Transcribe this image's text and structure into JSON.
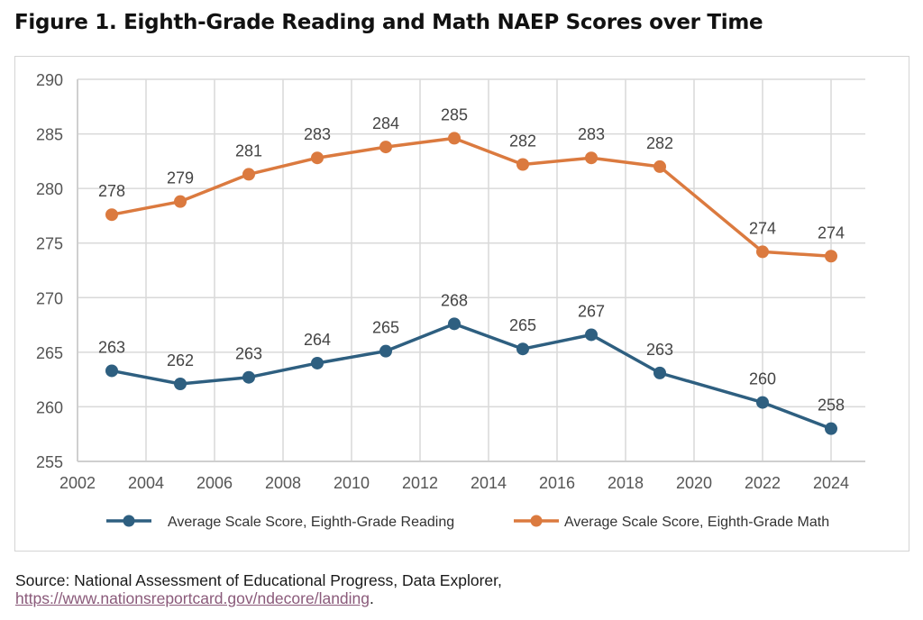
{
  "figure_title": "Figure 1. Eighth-Grade Reading and Math NAEP Scores over Time",
  "source": {
    "prefix": "Source: National Assessment of Educational Progress, Data Explorer,",
    "link_text": "https://www.nationsreportcard.gov/ndecore/landing",
    "suffix": "."
  },
  "chart_data": {
    "type": "line",
    "title": "Figure 1. Eighth-Grade Reading and Math NAEP Scores over Time",
    "xlabel": "",
    "ylabel": "",
    "xlim": [
      2002,
      2025
    ],
    "ylim": [
      255,
      290
    ],
    "xticks": [
      2002,
      2004,
      2006,
      2008,
      2010,
      2012,
      2014,
      2016,
      2018,
      2020,
      2022,
      2024
    ],
    "yticks": [
      255,
      260,
      265,
      270,
      275,
      280,
      285,
      290
    ],
    "grid": true,
    "legend_position": "bottom",
    "x": [
      2003,
      2005,
      2007,
      2009,
      2011,
      2013,
      2015,
      2017,
      2019,
      2022,
      2024
    ],
    "series": [
      {
        "name": "Average Scale Score, Eighth-Grade Reading",
        "color": "#2e5f80",
        "values": [
          263.3,
          262.1,
          262.7,
          264.0,
          265.1,
          267.6,
          265.3,
          266.6,
          263.1,
          260.4,
          258.0
        ],
        "labels": [
          "263",
          "262",
          "263",
          "264",
          "265",
          "268",
          "265",
          "267",
          "263",
          "260",
          "258"
        ]
      },
      {
        "name": "Average Scale Score, Eighth-Grade Math",
        "color": "#db7a3f",
        "values": [
          277.6,
          278.8,
          281.3,
          282.8,
          283.8,
          284.6,
          282.2,
          282.8,
          282.0,
          274.2,
          273.8
        ],
        "labels": [
          "278",
          "279",
          "281",
          "283",
          "284",
          "285",
          "282",
          "283",
          "282",
          "274",
          "274"
        ]
      }
    ]
  }
}
